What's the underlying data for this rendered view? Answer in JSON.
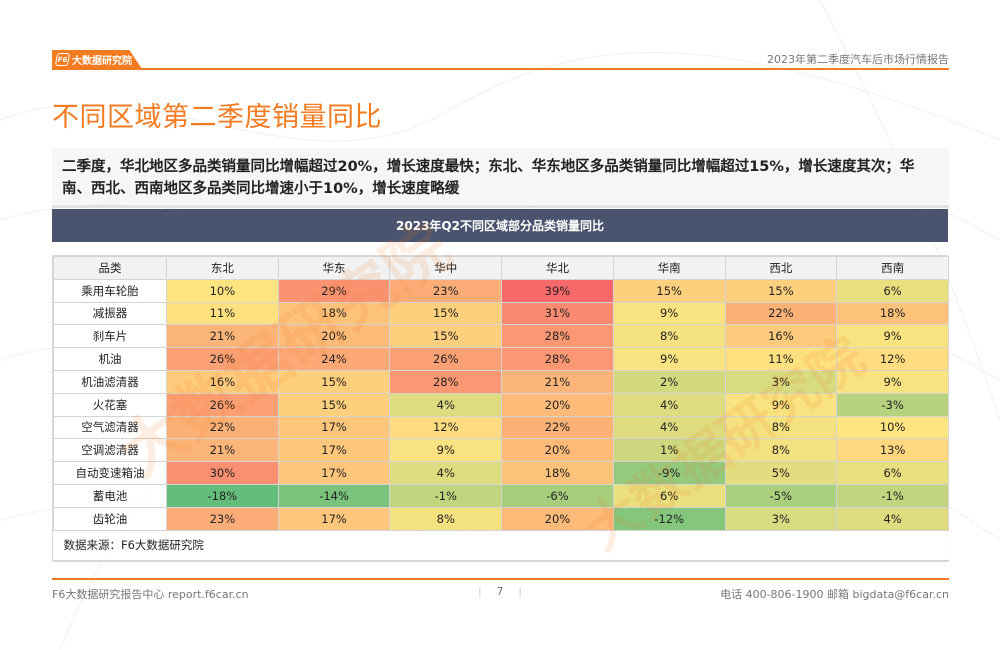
{
  "header": {
    "brand_logo": "F6",
    "brand_name": "大数据研究院",
    "report_title": "2023年第二季度汽车后市场行情报告"
  },
  "page_title": "不同区域第二季度销量同比",
  "summary": "二季度，华北地区多品类销量同比增幅超过20%，增长速度最快；东北、华东地区多品类销量同比增幅超过15%，增长速度其次；华南、西北、西南地区多品类同比增速小于10%，增长速度略缓",
  "watermark": "大数据研究院",
  "chart_data": {
    "type": "heatmap",
    "title": "2023年Q2不同区域部分品类销量同比",
    "row_header": "品类",
    "columns": [
      "东北",
      "华东",
      "华中",
      "华北",
      "华南",
      "西北",
      "西南"
    ],
    "rows": [
      "乘用车轮胎",
      "减振器",
      "刹车片",
      "机油",
      "机油滤清器",
      "火花塞",
      "空气滤清器",
      "空调滤清器",
      "自动变速箱油",
      "蓄电池",
      "齿轮油"
    ],
    "values": [
      [
        10,
        29,
        23,
        39,
        15,
        15,
        6
      ],
      [
        11,
        18,
        15,
        31,
        9,
        22,
        18
      ],
      [
        21,
        20,
        15,
        28,
        8,
        16,
        9
      ],
      [
        26,
        24,
        26,
        28,
        9,
        11,
        12
      ],
      [
        16,
        15,
        28,
        21,
        2,
        3,
        9
      ],
      [
        26,
        15,
        4,
        20,
        4,
        9,
        -3
      ],
      [
        22,
        17,
        12,
        22,
        4,
        8,
        10
      ],
      [
        21,
        17,
        9,
        20,
        1,
        8,
        13
      ],
      [
        30,
        17,
        4,
        18,
        -9,
        5,
        6
      ],
      [
        -18,
        -14,
        -1,
        -6,
        6,
        -5,
        -1
      ],
      [
        23,
        17,
        8,
        20,
        -12,
        3,
        4
      ]
    ],
    "unit": "%",
    "color_scale": {
      "min": -18,
      "max": 39,
      "low_color": "#63be7b",
      "mid_color": "#ffe480",
      "high_color": "#f8696b"
    },
    "source": "数据来源：F6大数据研究院"
  },
  "footer": {
    "left": "F6大数据研究报告中心 report.f6car.cn",
    "page_number": "7",
    "separator": "|",
    "right": "电话 400-806-1900  邮箱 bigdata@f6car.cn"
  },
  "colors": {
    "accent": "#f47b20",
    "banner": "#4a546e"
  }
}
